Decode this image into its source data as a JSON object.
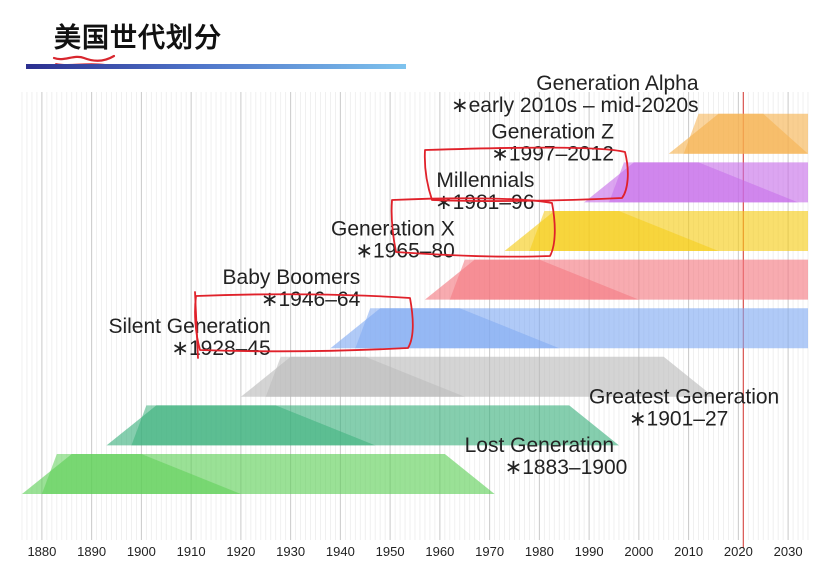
{
  "slide": {
    "title": "美国世代划分"
  },
  "chart_data": {
    "type": "timeline",
    "title": "",
    "xlabel": "",
    "ylabel": "",
    "xlim": [
      1876,
      2034
    ],
    "x_ticks": [
      1880,
      1890,
      1900,
      1910,
      1920,
      1930,
      1940,
      1950,
      1960,
      1970,
      1980,
      1990,
      2000,
      2010,
      2020,
      2030
    ],
    "grid": true,
    "reference_line": 2021,
    "series": [
      {
        "name": "Lost Generation",
        "years": "∗1883–1900",
        "start": 1883,
        "end": 1900,
        "band_start": 1876,
        "band_end": 1971,
        "color": "#5ccf55",
        "label_side": "right"
      },
      {
        "name": "Greatest Generation",
        "years": "∗1901–27",
        "start": 1901,
        "end": 1927,
        "band_start": 1893,
        "band_end": 1996,
        "color": "#3ab07c",
        "label_side": "right"
      },
      {
        "name": "Silent Generation",
        "years": "∗1928–45",
        "start": 1928,
        "end": 1945,
        "band_start": 1920,
        "band_end": 2015,
        "color": "#b9b9b9",
        "label_side": "left"
      },
      {
        "name": "Baby Boomers",
        "years": "∗1946–64",
        "start": 1946,
        "end": 1964,
        "band_start": 1938,
        "band_end": 2034,
        "color": "#7fa9f2",
        "label_side": "left"
      },
      {
        "name": "Generation X",
        "years": "∗1965–80",
        "start": 1965,
        "end": 1980,
        "band_start": 1957,
        "band_end": 2034,
        "color": "#f4777f",
        "label_side": "left"
      },
      {
        "name": "Millennials",
        "years": "∗1981–96",
        "start": 1981,
        "end": 1996,
        "band_start": 1973,
        "band_end": 2034,
        "color": "#f6cc14",
        "label_side": "left"
      },
      {
        "name": "Generation Z",
        "years": "∗1997–2012",
        "start": 1997,
        "end": 2012,
        "band_start": 1989,
        "band_end": 2034,
        "color": "#c66ee9",
        "label_side": "left"
      },
      {
        "name": "Generation Alpha",
        "years": "∗early 2010s – mid-2020s",
        "start": 2012,
        "end": 2025,
        "band_start": 2006,
        "band_end": 2034,
        "color": "#f5b14d",
        "label_side": "left"
      }
    ]
  }
}
